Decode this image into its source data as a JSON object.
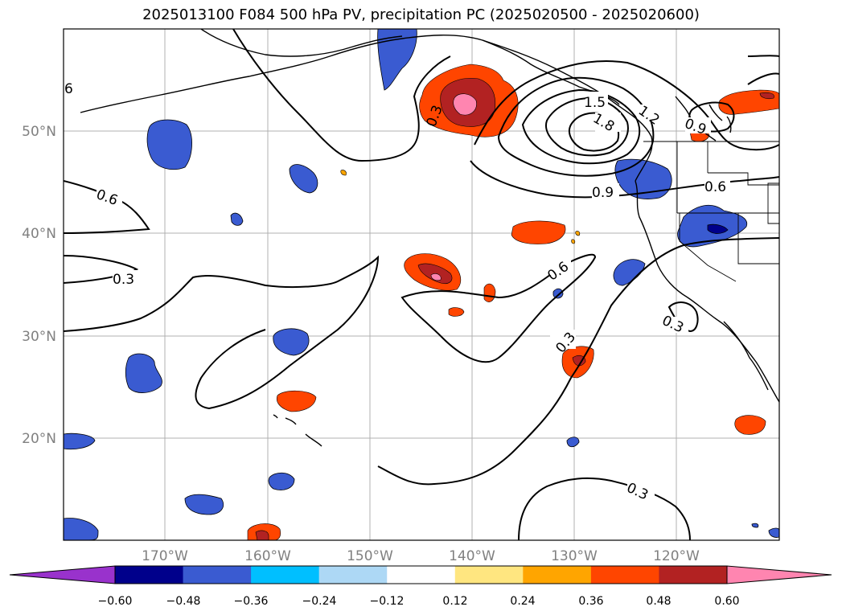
{
  "title": "2025013100 F084 500 hPa PV, precipitation PC (2025020500 - 2025020600)",
  "axes": {
    "lat_labels": [
      "50°N",
      "40°N",
      "30°N",
      "20°N"
    ],
    "lon_labels": [
      "170°W",
      "160°W",
      "150°W",
      "140°W",
      "130°W",
      "120°W"
    ]
  },
  "contour_labels": [
    "6",
    "0.6",
    "0.3",
    "0.3",
    "0.6",
    "1.5",
    "1.2",
    "1.8",
    "0.9",
    "0.9",
    "0.6",
    "0.3",
    "0.3",
    "0.3"
  ],
  "colorbar": {
    "ticks": [
      "−0.60",
      "−0.48",
      "−0.36",
      "−0.24",
      "−0.12",
      "0.12",
      "0.24",
      "0.36",
      "0.48",
      "0.60"
    ],
    "colors": [
      "#9932cc",
      "#00008b",
      "#3a5bd1",
      "#00bfff",
      "#add8f5",
      "#ffffff",
      "#ffe680",
      "#ffa500",
      "#ff4500",
      "#b22222",
      "#ff85b0"
    ]
  },
  "colors": {
    "grid": "#b0b0b0",
    "contour": "#000000",
    "tick_text": "#808080"
  }
}
